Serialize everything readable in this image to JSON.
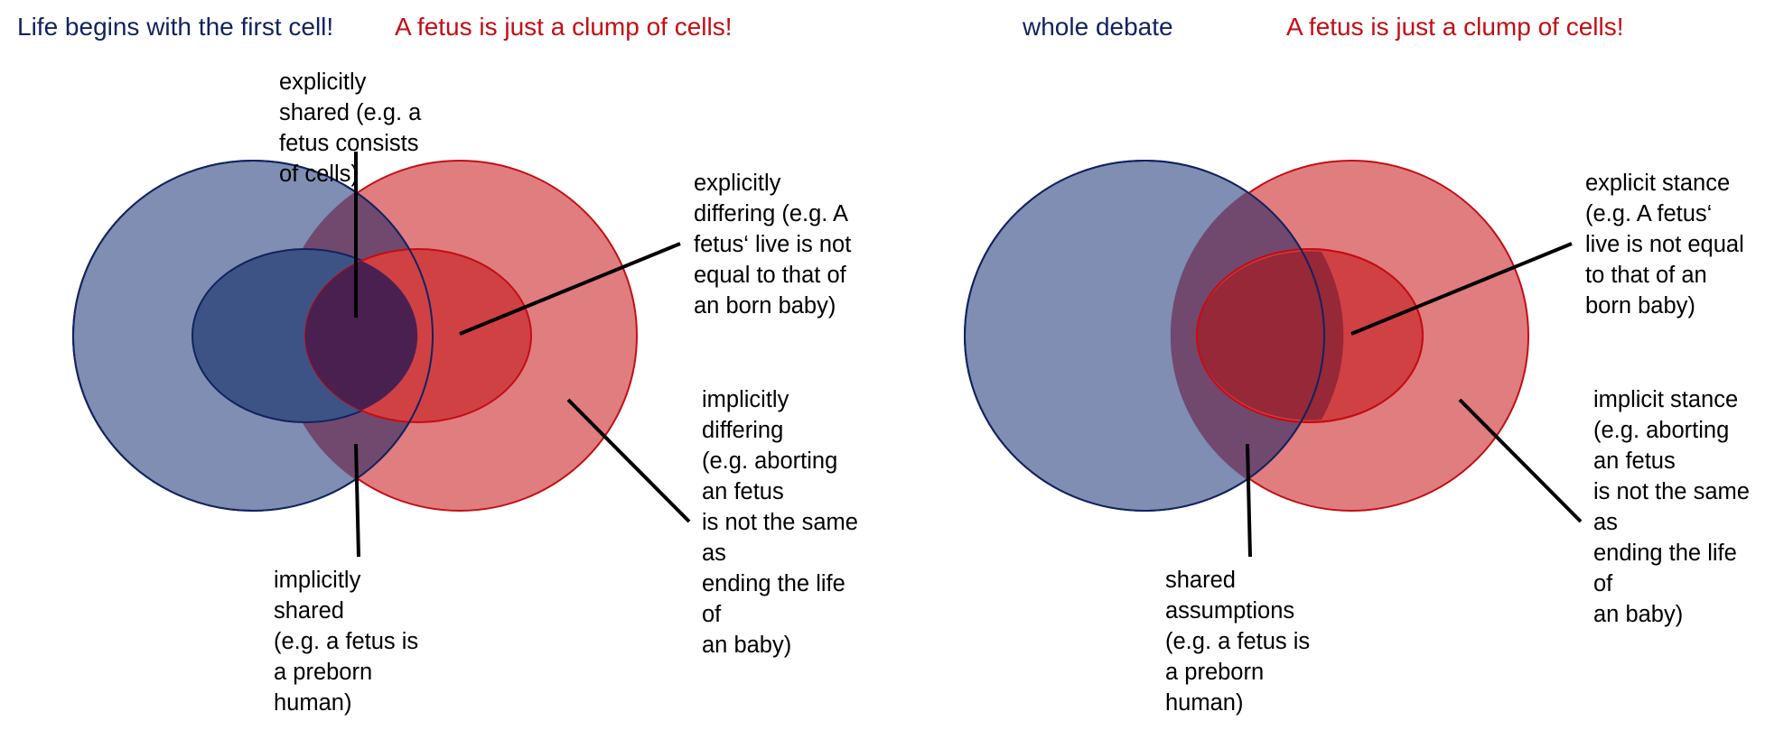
{
  "colors": {
    "blue_outline": "#11225f",
    "blue_outer_fill": "#7f8eb2",
    "blue_inner_fill": "#3e5385",
    "red_outline": "#c40d14",
    "red_outer_fill": "#e07d7f",
    "red_inner_fill": "#d04144",
    "overlap_outer": "#71496f",
    "overlap_inner": "#4a2050",
    "overlap_inner_right": "#962838",
    "pointer_line": "#000000"
  },
  "left_panel": {
    "title_blue": "Life begins with the first cell!",
    "title_red": "A fetus is just a clump of cells!",
    "label_top": {
      "lines": [
        "explicitly",
        "shared (e.g. a",
        "fetus consists",
        "of cells)"
      ]
    },
    "label_right_top": {
      "lines": [
        "explicitly",
        "differing (e.g. A",
        "fetus‘ live is not",
        "equal to that of",
        "an born baby)"
      ]
    },
    "label_right_bottom": {
      "lines": [
        "implicitly",
        "differing",
        "(e.g. aborting",
        "an fetus",
        "is not the same",
        "as",
        "ending the life",
        "of",
        "an baby)"
      ]
    },
    "label_bottom": {
      "lines": [
        "implicitly",
        "shared",
        "(e.g. a fetus is",
        "a preborn",
        "human)"
      ]
    }
  },
  "right_panel": {
    "title_blue": "whole debate",
    "title_red": "A fetus is just a clump of cells!",
    "label_right_top": {
      "lines": [
        "explicit stance",
        "(e.g. A fetus‘",
        "live is not equal",
        "to that of an",
        "born baby)"
      ]
    },
    "label_right_bottom": {
      "lines": [
        "implicit stance",
        "(e.g. aborting",
        "an fetus",
        "is not the same",
        "as",
        "ending the life",
        "of",
        "an baby)"
      ]
    },
    "label_bottom": {
      "lines": [
        "shared",
        "assumptions",
        "(e.g. a fetus is",
        "a preborn",
        "human)"
      ]
    }
  }
}
